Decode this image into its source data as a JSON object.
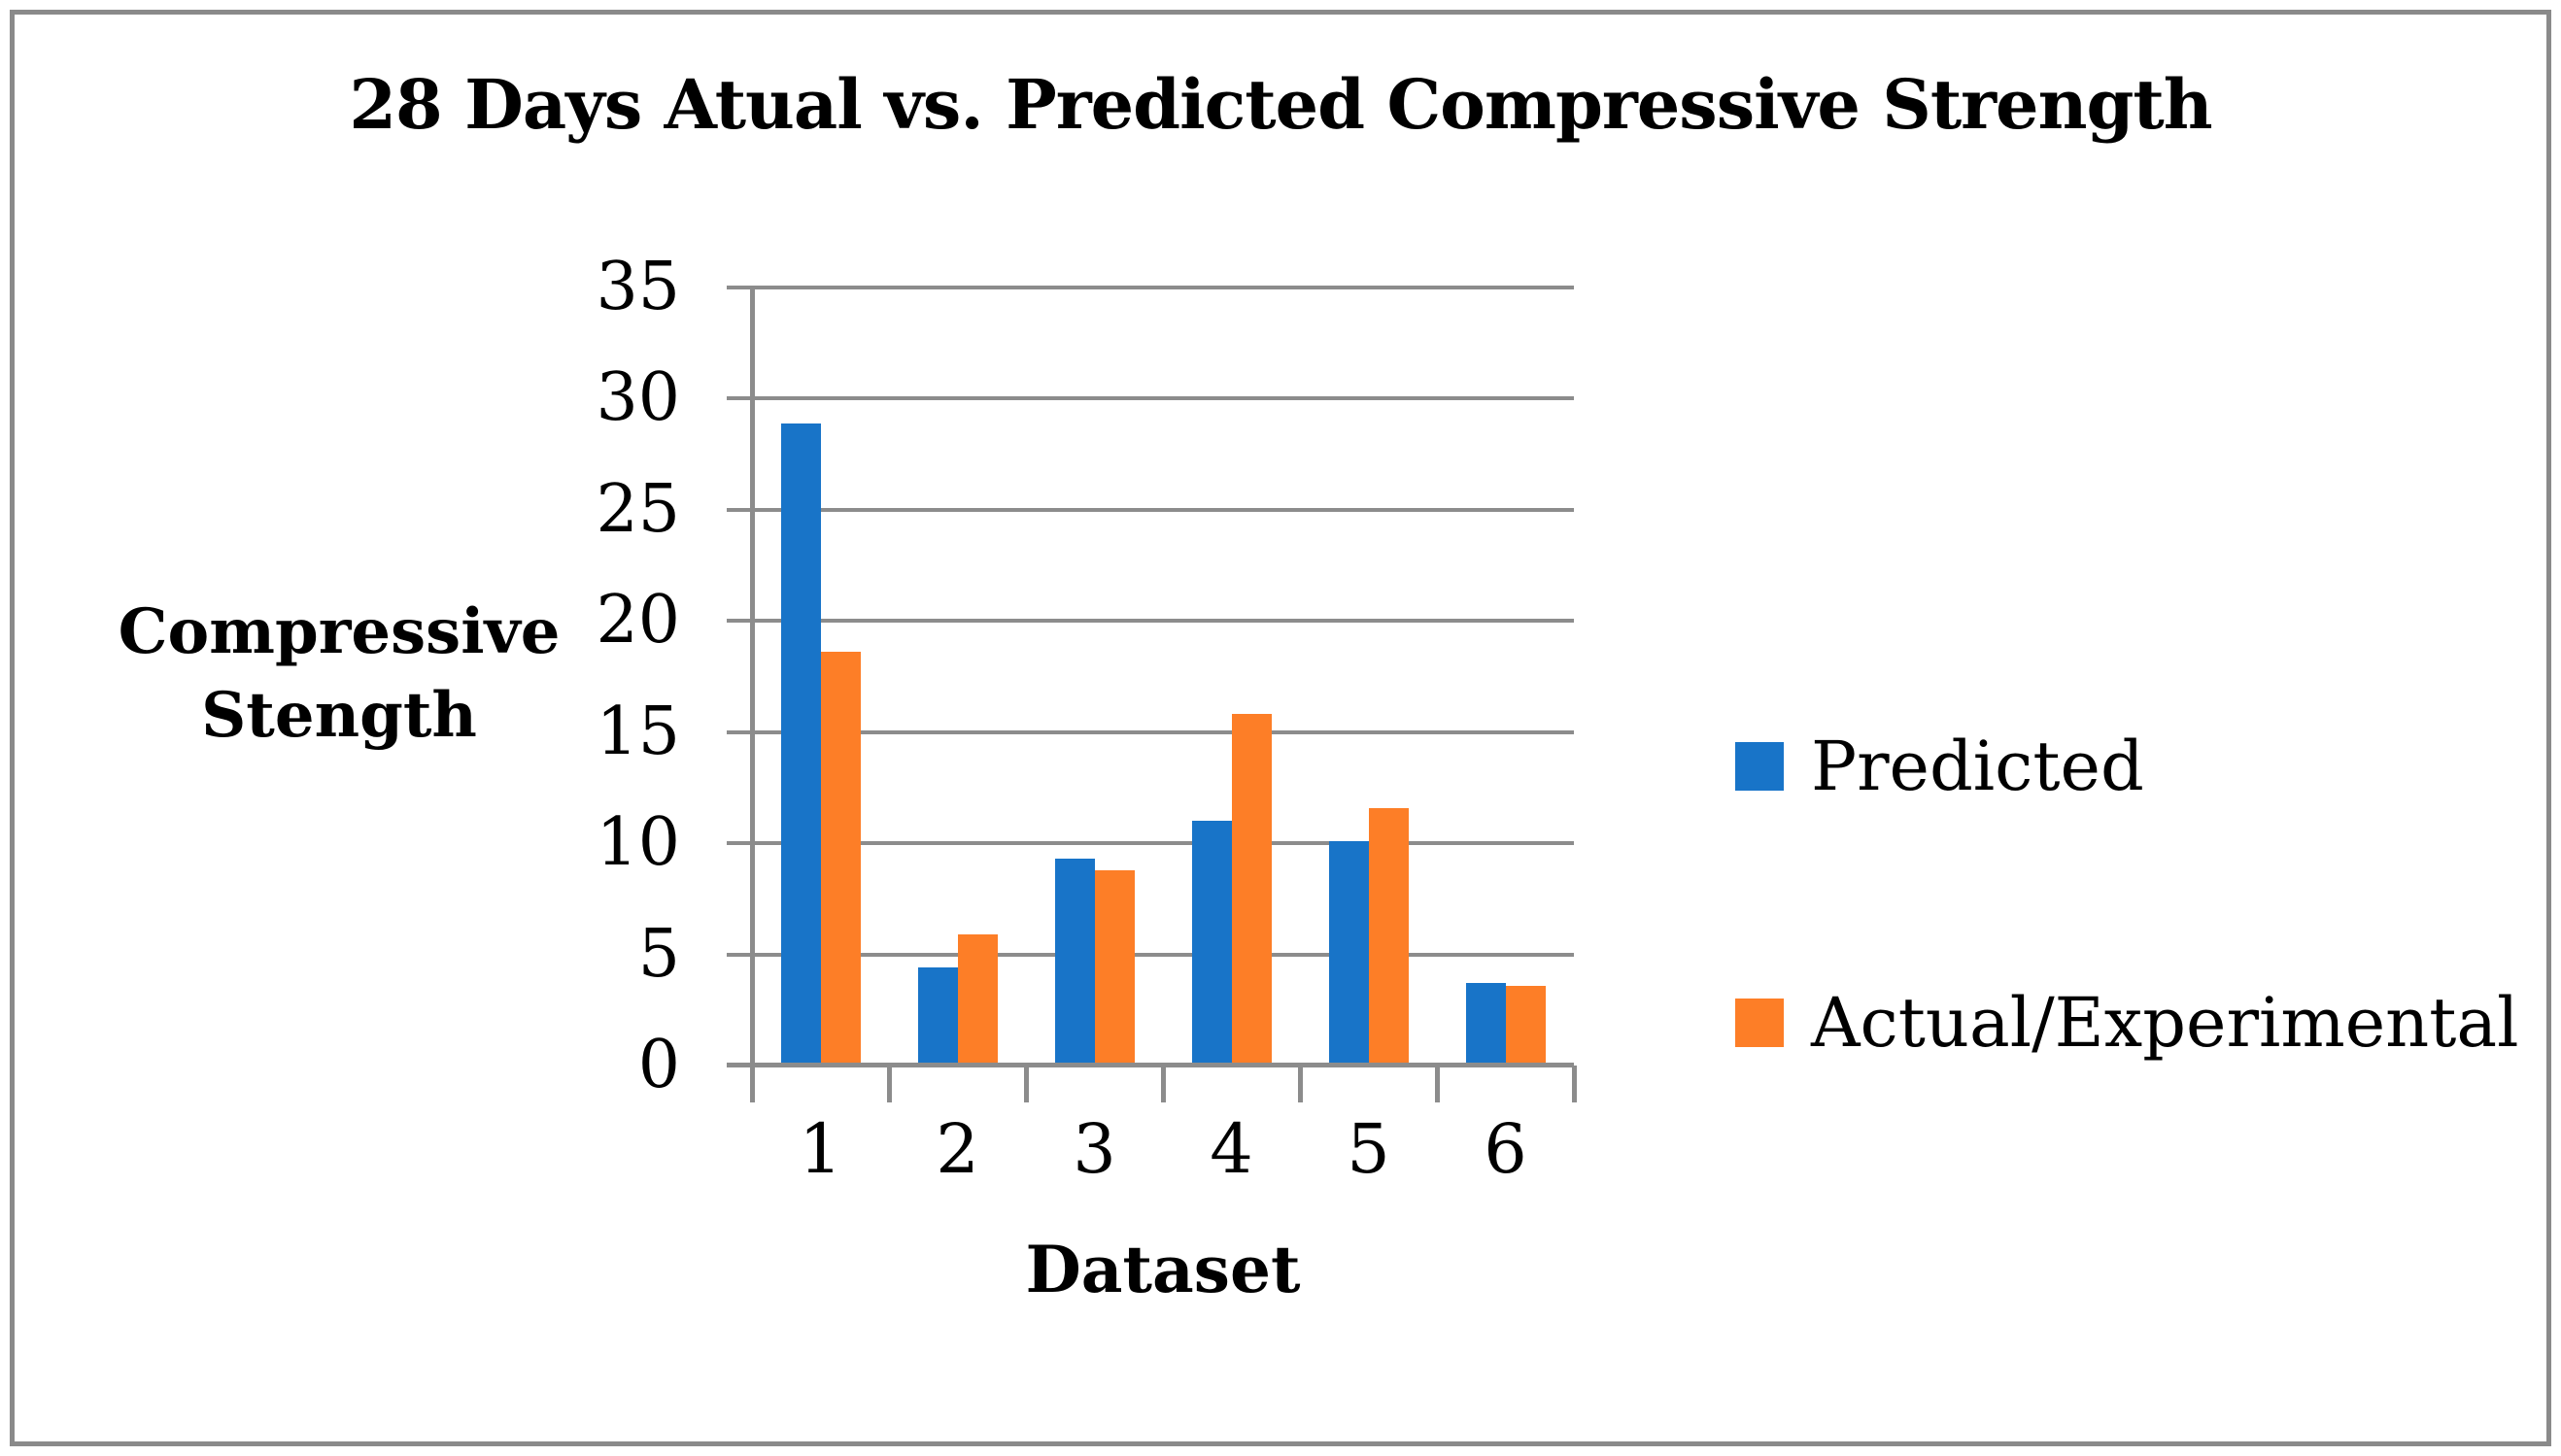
{
  "figure": {
    "border_color": "#8A8A8A",
    "background": "#FFFFFF"
  },
  "chart_data": {
    "type": "bar",
    "title": "28 Days Atual vs. Predicted Compressive Strength",
    "xlabel": "Dataset",
    "ylabel": "Compressive Stength",
    "categories": [
      "1",
      "2",
      "3",
      "4",
      "5",
      "6"
    ],
    "series": [
      {
        "name": "Predicted",
        "color": "#1874C8",
        "values": [
          28.9,
          4.4,
          9.3,
          11,
          10.1,
          3.7
        ]
      },
      {
        "name": "Actual/Experimental",
        "color": "#FD7E27",
        "values": [
          18.6,
          5.9,
          8.8,
          15.8,
          11.6,
          3.6
        ]
      }
    ],
    "ylim": [
      0,
      35
    ],
    "yticks": [
      0,
      5,
      10,
      15,
      20,
      25,
      30,
      35
    ],
    "grid": "horizontal",
    "gridline_color": "#8C8C8C",
    "axis_color": "#8C8C8C",
    "legend_position": "right",
    "text_color": "#000000"
  }
}
